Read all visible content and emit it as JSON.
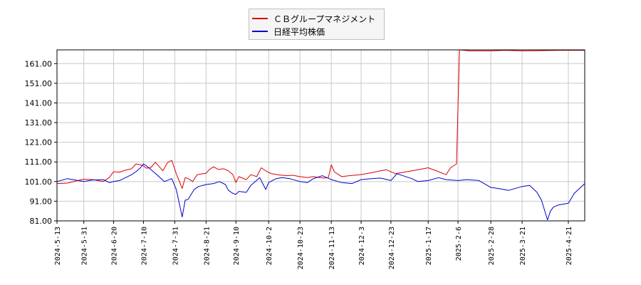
{
  "chart_data": {
    "type": "line",
    "title": "",
    "xlabel": "",
    "ylabel": "",
    "ylim": [
      81,
      168
    ],
    "yticks": [
      81,
      91,
      101,
      111,
      121,
      131,
      141,
      151,
      161
    ],
    "ytick_labels": [
      "81.00",
      "91.00",
      "101.00",
      "111.00",
      "121.00",
      "131.00",
      "141.00",
      "151.00",
      "161.00"
    ],
    "xlim": [
      "2024-05-13",
      "2025-05-02"
    ],
    "xticks": [
      "2024-5-13",
      "2024-5-31",
      "2024-6-20",
      "2024-7-10",
      "2024-7-31",
      "2024-8-21",
      "2024-9-10",
      "2024-10-2",
      "2024-10-23",
      "2024-11-13",
      "2024-12-3",
      "2024-12-23",
      "2025-1-17",
      "2025-2-6",
      "2025-2-28",
      "2025-3-21",
      "2025-4-21"
    ],
    "grid": true,
    "legend_position": "top-center",
    "series": [
      {
        "name": "ＣＢグループマネジメント",
        "color": "#dd0000",
        "points": [
          [
            "2024-05-13",
            100.0
          ],
          [
            "2024-05-20",
            100.2
          ],
          [
            "2024-05-27",
            101.5
          ],
          [
            "2024-05-31",
            102.2
          ],
          [
            "2024-06-06",
            102.0
          ],
          [
            "2024-06-13",
            101.0
          ],
          [
            "2024-06-17",
            103.0
          ],
          [
            "2024-06-20",
            106.0
          ],
          [
            "2024-06-24",
            105.8
          ],
          [
            "2024-06-28",
            106.8
          ],
          [
            "2024-07-02",
            107.5
          ],
          [
            "2024-07-05",
            110.0
          ],
          [
            "2024-07-08",
            109.5
          ],
          [
            "2024-07-10",
            109.0
          ],
          [
            "2024-07-12",
            107.8
          ],
          [
            "2024-07-15",
            108.2
          ],
          [
            "2024-07-18",
            110.8
          ],
          [
            "2024-07-23",
            106.5
          ],
          [
            "2024-07-26",
            110.5
          ],
          [
            "2024-07-29",
            111.8
          ],
          [
            "2024-08-01",
            105.0
          ],
          [
            "2024-08-05",
            97.5
          ],
          [
            "2024-08-07",
            103.0
          ],
          [
            "2024-08-09",
            102.5
          ],
          [
            "2024-08-12",
            101.0
          ],
          [
            "2024-08-15",
            104.5
          ],
          [
            "2024-08-19",
            105.0
          ],
          [
            "2024-08-21",
            105.2
          ],
          [
            "2024-08-23",
            107.0
          ],
          [
            "2024-08-26",
            108.5
          ],
          [
            "2024-08-29",
            107.2
          ],
          [
            "2024-09-02",
            107.5
          ],
          [
            "2024-09-05",
            106.5
          ],
          [
            "2024-09-08",
            104.5
          ],
          [
            "2024-09-10",
            100.5
          ],
          [
            "2024-09-12",
            103.5
          ],
          [
            "2024-09-17",
            102.0
          ],
          [
            "2024-09-20",
            104.5
          ],
          [
            "2024-09-24",
            103.5
          ],
          [
            "2024-09-27",
            108.0
          ],
          [
            "2024-10-01",
            106.0
          ],
          [
            "2024-10-04",
            105.0
          ],
          [
            "2024-10-08",
            104.5
          ],
          [
            "2024-10-14",
            104.0
          ],
          [
            "2024-10-18",
            104.2
          ],
          [
            "2024-10-23",
            103.5
          ],
          [
            "2024-10-28",
            103.0
          ],
          [
            "2024-11-01",
            103.5
          ],
          [
            "2024-11-05",
            103.0
          ],
          [
            "2024-11-08",
            102.8
          ],
          [
            "2024-11-11",
            103.0
          ],
          [
            "2024-11-13",
            109.5
          ],
          [
            "2024-11-15",
            106.0
          ],
          [
            "2024-11-20",
            103.5
          ],
          [
            "2024-11-25",
            104.0
          ],
          [
            "2024-12-02",
            104.5
          ],
          [
            "2024-12-05",
            104.8
          ],
          [
            "2024-12-10",
            105.5
          ],
          [
            "2024-12-16",
            106.5
          ],
          [
            "2024-12-20",
            107.0
          ],
          [
            "2024-12-26",
            105.0
          ],
          [
            "2025-01-06",
            106.5
          ],
          [
            "2025-01-10",
            107.0
          ],
          [
            "2025-01-17",
            108.0
          ],
          [
            "2025-01-24",
            106.0
          ],
          [
            "2025-01-29",
            104.5
          ],
          [
            "2025-02-01",
            108.0
          ],
          [
            "2025-02-05",
            110.0
          ],
          [
            "2025-02-06",
            140.0
          ],
          [
            "2025-02-07",
            168.0
          ],
          [
            "2025-02-14",
            167.5
          ],
          [
            "2025-02-28",
            167.5
          ],
          [
            "2025-03-10",
            167.8
          ],
          [
            "2025-03-21",
            167.5
          ],
          [
            "2025-04-01",
            167.6
          ],
          [
            "2025-04-15",
            167.8
          ],
          [
            "2025-05-02",
            167.8
          ]
        ]
      },
      {
        "name": "日経平均株価",
        "color": "#0000cc",
        "points": [
          [
            "2024-05-13",
            101.0
          ],
          [
            "2024-05-20",
            102.5
          ],
          [
            "2024-05-27",
            101.5
          ],
          [
            "2024-05-31",
            101.0
          ],
          [
            "2024-06-06",
            101.8
          ],
          [
            "2024-06-13",
            102.0
          ],
          [
            "2024-06-17",
            100.5
          ],
          [
            "2024-06-20",
            101.0
          ],
          [
            "2024-06-24",
            101.5
          ],
          [
            "2024-06-28",
            103.0
          ],
          [
            "2024-07-02",
            104.5
          ],
          [
            "2024-07-05",
            106.0
          ],
          [
            "2024-07-08",
            108.0
          ],
          [
            "2024-07-10",
            110.0
          ],
          [
            "2024-07-12",
            109.0
          ],
          [
            "2024-07-16",
            106.5
          ],
          [
            "2024-07-19",
            104.5
          ],
          [
            "2024-07-24",
            101.0
          ],
          [
            "2024-07-29",
            102.5
          ],
          [
            "2024-08-01",
            97.0
          ],
          [
            "2024-08-05",
            83.0
          ],
          [
            "2024-08-07",
            91.5
          ],
          [
            "2024-08-09",
            92.0
          ],
          [
            "2024-08-13",
            97.0
          ],
          [
            "2024-08-16",
            98.5
          ],
          [
            "2024-08-21",
            99.5
          ],
          [
            "2024-08-26",
            100.0
          ],
          [
            "2024-08-30",
            101.0
          ],
          [
            "2024-09-03",
            99.5
          ],
          [
            "2024-09-05",
            96.5
          ],
          [
            "2024-09-08",
            95.0
          ],
          [
            "2024-09-10",
            94.5
          ],
          [
            "2024-09-12",
            96.0
          ],
          [
            "2024-09-17",
            95.5
          ],
          [
            "2024-09-20",
            99.0
          ],
          [
            "2024-09-26",
            103.0
          ],
          [
            "2024-09-30",
            97.0
          ],
          [
            "2024-10-02",
            100.5
          ],
          [
            "2024-10-07",
            102.5
          ],
          [
            "2024-10-11",
            103.0
          ],
          [
            "2024-10-16",
            102.5
          ],
          [
            "2024-10-23",
            101.0
          ],
          [
            "2024-10-28",
            100.5
          ],
          [
            "2024-11-01",
            102.5
          ],
          [
            "2024-11-07",
            104.0
          ],
          [
            "2024-11-13",
            102.0
          ],
          [
            "2024-11-20",
            100.5
          ],
          [
            "2024-11-27",
            100.0
          ],
          [
            "2024-12-03",
            102.0
          ],
          [
            "2024-12-10",
            102.5
          ],
          [
            "2024-12-16",
            102.8
          ],
          [
            "2024-12-23",
            101.5
          ],
          [
            "2024-12-27",
            105.0
          ],
          [
            "2025-01-06",
            102.5
          ],
          [
            "2025-01-10",
            101.0
          ],
          [
            "2025-01-17",
            101.5
          ],
          [
            "2025-01-24",
            103.0
          ],
          [
            "2025-01-29",
            102.0
          ],
          [
            "2025-02-06",
            101.5
          ],
          [
            "2025-02-12",
            102.0
          ],
          [
            "2025-02-20",
            101.5
          ],
          [
            "2025-02-28",
            98.0
          ],
          [
            "2025-03-05",
            97.5
          ],
          [
            "2025-03-12",
            96.5
          ],
          [
            "2025-03-21",
            98.5
          ],
          [
            "2025-03-26",
            99.0
          ],
          [
            "2025-03-31",
            95.5
          ],
          [
            "2025-04-03",
            91.5
          ],
          [
            "2025-04-07",
            81.5
          ],
          [
            "2025-04-09",
            86.0
          ],
          [
            "2025-04-11",
            88.0
          ],
          [
            "2025-04-14",
            89.0
          ],
          [
            "2025-04-21",
            90.0
          ],
          [
            "2025-04-25",
            95.0
          ],
          [
            "2025-05-02",
            100.0
          ]
        ]
      }
    ]
  }
}
